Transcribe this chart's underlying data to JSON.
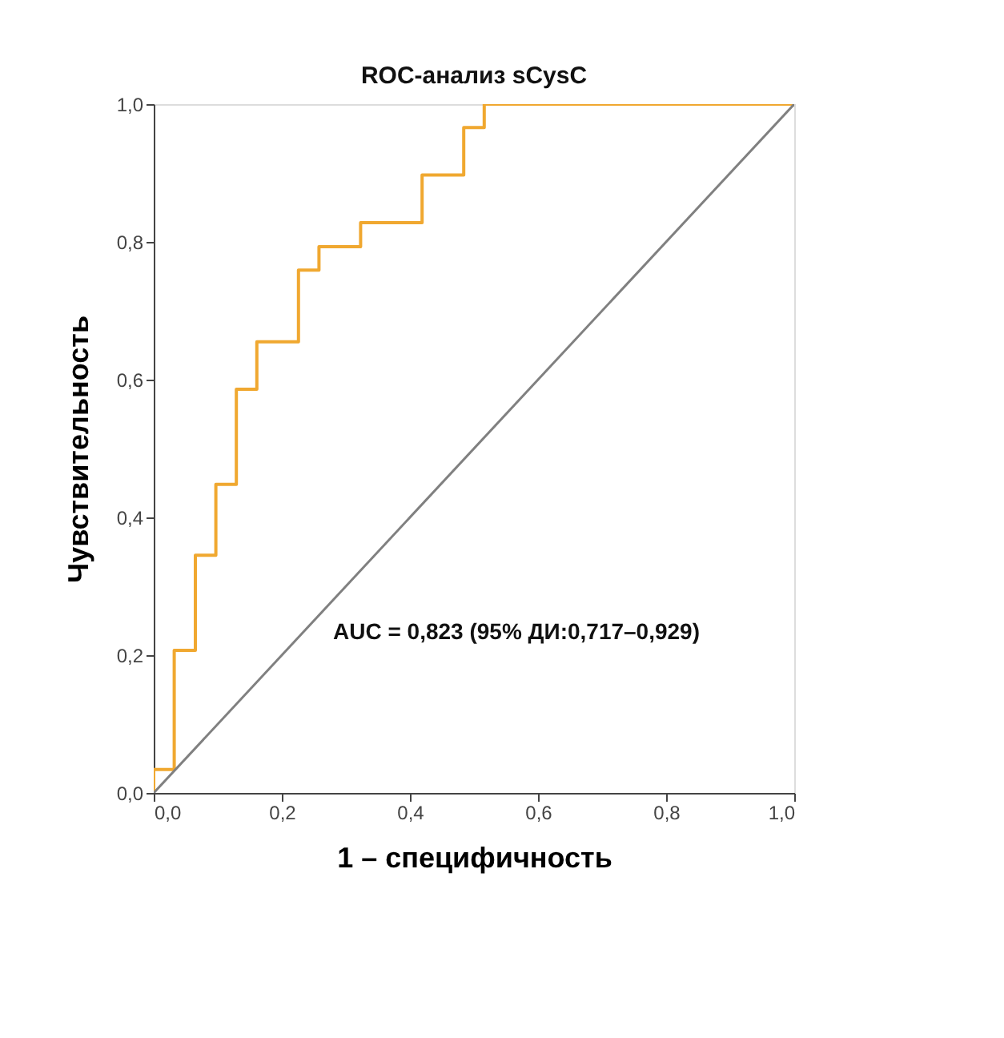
{
  "chart_data": {
    "type": "step",
    "title": "ROC-анализ sCysC",
    "xlabel": "1 – специфичность",
    "ylabel": "Чувствительность",
    "series": [
      {
        "color": "#f0a830",
        "x": [
          0,
          0,
          0.032,
          0.065,
          0.097,
          0.129,
          0.161,
          0.226,
          0.258,
          0.323,
          0.419,
          0.484,
          0.516,
          1.0
        ],
        "values": [
          0,
          0.034,
          0.207,
          0.345,
          0.448,
          0.586,
          0.655,
          0.759,
          0.793,
          0.828,
          0.897,
          0.966,
          1.0,
          1.0
        ]
      },
      {
        "type": "line",
        "color": "#808080",
        "x": [
          0,
          1.0
        ],
        "values": [
          0,
          1.0
        ]
      }
    ],
    "xlim": [
      0,
      1.0
    ],
    "ylim": [
      0,
      1.0
    ],
    "xticks": [
      {
        "value": 0,
        "label": "0,0"
      },
      {
        "value": 0.2,
        "label": "0,2"
      },
      {
        "value": 0.4,
        "label": "0,4"
      },
      {
        "value": 0.6,
        "label": "0,6"
      },
      {
        "value": 0.8,
        "label": "0,8"
      },
      {
        "value": 1.0,
        "label": "1,0"
      }
    ],
    "yticks": [
      {
        "value": 0,
        "label": "0,0"
      },
      {
        "value": 0.2,
        "label": "0,2"
      },
      {
        "value": 0.4,
        "label": "0,4"
      },
      {
        "value": 0.6,
        "label": "0,6"
      },
      {
        "value": 0.8,
        "label": "0,8"
      },
      {
        "value": 1.0,
        "label": "1,0"
      }
    ],
    "annotations": [
      "AUC = 0,823 (95% ДИ:0,717–0,929)"
    ],
    "grid": false,
    "legend": false
  }
}
